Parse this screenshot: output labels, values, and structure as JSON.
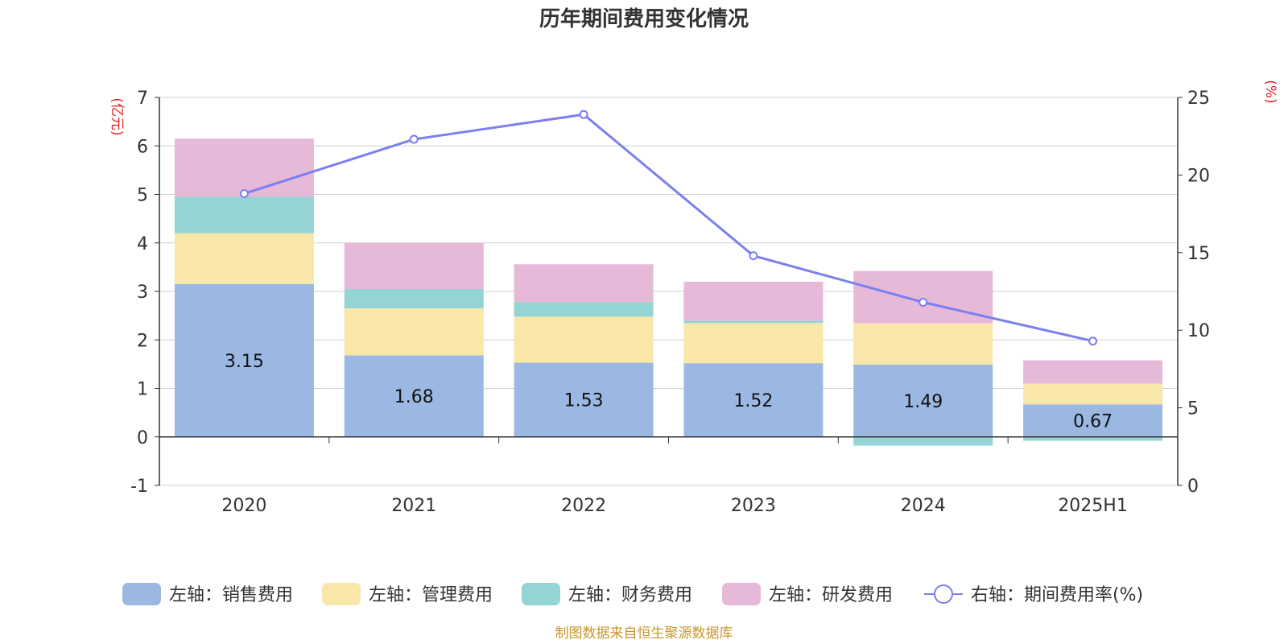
{
  "chart_data": {
    "type": "bar",
    "stacked": true,
    "title": "历年期间费用变化情况",
    "categories": [
      "2020",
      "2021",
      "2022",
      "2023",
      "2024",
      "2025H1"
    ],
    "y_left": {
      "unit": "(亿元)",
      "min": -1,
      "max": 7,
      "ticks": [
        "-1",
        "0",
        "1",
        "2",
        "3",
        "4",
        "5",
        "6",
        "7"
      ]
    },
    "y_right": {
      "unit": "(%)",
      "min": 0,
      "max": 25,
      "ticks": [
        "0",
        "5",
        "10",
        "15",
        "20",
        "25"
      ]
    },
    "grid": true,
    "series": [
      {
        "name": "左轴：销售费用",
        "axis": "left",
        "color": "#9bb8e3",
        "values": [
          3.15,
          1.68,
          1.53,
          1.52,
          1.49,
          0.67
        ],
        "labels": [
          "3.15",
          "1.68",
          "1.53",
          "1.52",
          "1.49",
          "0.67"
        ]
      },
      {
        "name": "左轴：管理费用",
        "axis": "left",
        "color": "#f8e7a8",
        "values": [
          1.05,
          0.97,
          0.95,
          0.83,
          0.85,
          0.43
        ]
      },
      {
        "name": "左轴：财务费用",
        "axis": "left",
        "color": "#95d4d4",
        "values": [
          0.75,
          0.4,
          0.3,
          0.05,
          -0.18,
          -0.08
        ]
      },
      {
        "name": "左轴：研发费用",
        "axis": "left",
        "color": "#e6b9d9",
        "values": [
          1.2,
          0.95,
          0.78,
          0.8,
          1.08,
          0.48
        ]
      },
      {
        "name": "右轴：期间费用率(%)",
        "axis": "right",
        "type": "line",
        "color": "#7b7ff0",
        "values": [
          18.8,
          22.3,
          23.9,
          14.8,
          11.8,
          9.3
        ]
      }
    ],
    "legend_position": "bottom",
    "source": "制图数据来自恒生聚源数据库"
  }
}
